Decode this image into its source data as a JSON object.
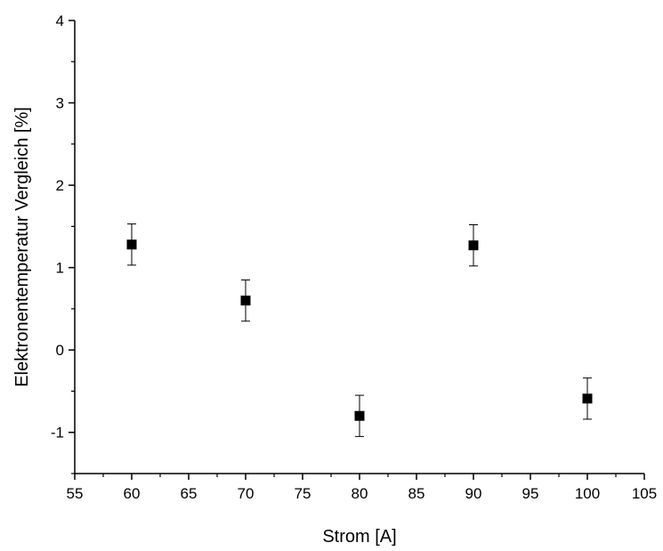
{
  "chart_data": {
    "type": "scatter",
    "title": "",
    "xlabel": "Strom [A]",
    "ylabel": "Elektronentemperatur Vergleich [%]",
    "xlim": [
      55,
      105
    ],
    "ylim": [
      -1.5,
      4
    ],
    "x_ticks": [
      55,
      60,
      65,
      70,
      75,
      80,
      85,
      90,
      95,
      100,
      105
    ],
    "y_ticks": [
      -1,
      0,
      1,
      2,
      3,
      4
    ],
    "grid": false,
    "marker": "square",
    "color": "#000000",
    "series": [
      {
        "x": [
          60,
          70,
          80,
          90,
          100
        ],
        "y": [
          1.28,
          0.6,
          -0.8,
          1.27,
          -0.59
        ],
        "error": [
          0.25,
          0.25,
          0.25,
          0.25,
          0.25
        ]
      }
    ]
  }
}
